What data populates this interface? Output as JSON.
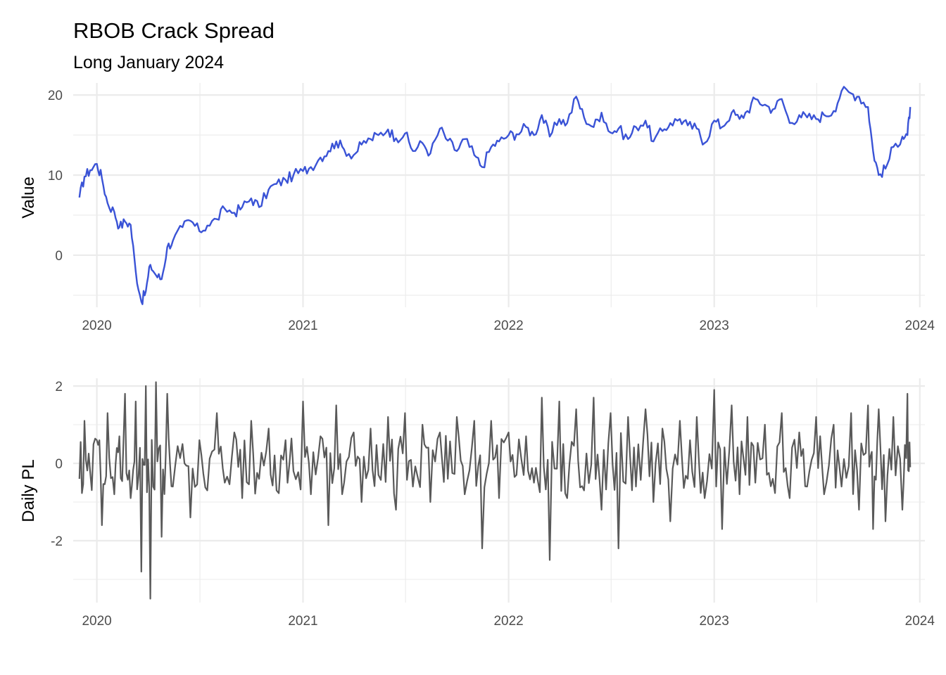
{
  "chart_data": [
    {
      "type": "line",
      "title": "RBOB Crack Spread",
      "subtitle": "Long January 2024",
      "xlabel": "",
      "ylabel": "Value",
      "x_ticks": [
        "2020",
        "2021",
        "2022",
        "2023",
        "2024"
      ],
      "y_ticks": [
        "0",
        "10",
        "20"
      ],
      "xlim": [
        "2019-11-20",
        "2024-01-10"
      ],
      "ylim": [
        -6.5,
        21.5
      ],
      "grid": true,
      "color": "#3a53d6",
      "series": [
        {
          "x": [
            "2019-12-01",
            "2019-12-10",
            "2019-12-20",
            "2020-01-01",
            "2020-01-10",
            "2020-01-20",
            "2020-02-01",
            "2020-02-10",
            "2020-02-20",
            "2020-03-01",
            "2020-03-10",
            "2020-03-20",
            "2020-03-28",
            "2020-04-05",
            "2020-04-15",
            "2020-04-25",
            "2020-05-05",
            "2020-05-15",
            "2020-06-01",
            "2020-06-15",
            "2020-07-01",
            "2020-07-15",
            "2020-08-01",
            "2020-08-15",
            "2020-09-01",
            "2020-09-15",
            "2020-10-01",
            "2020-10-15",
            "2020-11-01",
            "2020-11-15",
            "2020-12-01",
            "2020-12-15",
            "2021-01-01",
            "2021-01-15",
            "2021-02-01",
            "2021-02-15",
            "2021-03-01",
            "2021-03-15",
            "2021-04-01",
            "2021-04-15",
            "2021-05-01",
            "2021-05-15",
            "2021-06-01",
            "2021-06-15",
            "2021-07-01",
            "2021-07-15",
            "2021-08-01",
            "2021-08-15",
            "2021-09-01",
            "2021-09-15",
            "2021-10-01",
            "2021-10-15",
            "2021-11-01",
            "2021-11-15",
            "2021-12-01",
            "2021-12-15",
            "2022-01-01",
            "2022-01-15",
            "2022-02-01",
            "2022-02-15",
            "2022-03-01",
            "2022-03-15",
            "2022-04-01",
            "2022-04-15",
            "2022-05-01",
            "2022-05-15",
            "2022-06-01",
            "2022-06-15",
            "2022-07-01",
            "2022-07-15",
            "2022-08-01",
            "2022-08-15",
            "2022-09-01",
            "2022-09-15",
            "2022-10-01",
            "2022-10-15",
            "2022-11-01",
            "2022-11-15",
            "2022-12-01",
            "2022-12-15",
            "2023-01-01",
            "2023-01-15",
            "2023-02-01",
            "2023-02-15",
            "2023-03-01",
            "2023-03-15",
            "2023-04-01",
            "2023-04-15",
            "2023-05-01",
            "2023-05-15",
            "2023-06-01",
            "2023-06-15",
            "2023-07-01",
            "2023-07-15",
            "2023-08-01",
            "2023-08-15",
            "2023-09-01",
            "2023-09-15",
            "2023-10-01",
            "2023-10-10",
            "2023-10-20",
            "2023-11-01",
            "2023-11-15",
            "2023-12-01",
            "2023-12-10",
            "2023-12-15"
          ],
          "y": [
            7.2,
            9.8,
            10.6,
            11.4,
            9.6,
            6.5,
            5.4,
            3.5,
            4.2,
            3.8,
            -2.0,
            -5.8,
            -4.5,
            -1.2,
            -2.5,
            -3.0,
            1.0,
            1.8,
            3.5,
            4.3,
            3.0,
            3.7,
            4.5,
            5.8,
            5.3,
            6.0,
            7.1,
            6.0,
            8.2,
            8.9,
            9.4,
            10.0,
            10.5,
            11.0,
            12.2,
            13.0,
            14.2,
            13.2,
            12.5,
            13.8,
            14.5,
            15.0,
            15.7,
            14.6,
            15.2,
            13.0,
            14.0,
            12.7,
            15.8,
            14.3,
            13.0,
            14.5,
            12.5,
            11.0,
            13.5,
            14.2,
            15.0,
            15.1,
            16.0,
            15.0,
            17.5,
            14.8,
            17.0,
            16.5,
            19.8,
            17.2,
            16.0,
            17.8,
            15.3,
            15.8,
            14.5,
            16.0,
            16.8,
            14.2,
            15.5,
            16.5,
            17.0,
            16.2,
            15.8,
            14.0,
            16.8,
            16.0,
            17.8,
            17.0,
            18.0,
            19.5,
            18.8,
            18.2,
            19.5,
            16.5,
            17.5,
            17.2,
            17.0,
            17.5,
            18.0,
            20.5,
            20.2,
            19.8,
            18.5,
            13.0,
            10.0,
            10.8,
            13.5,
            14.8,
            15.0,
            18.5
          ]
        }
      ]
    },
    {
      "type": "line",
      "xlabel": "",
      "ylabel": "Daily PL",
      "x_ticks": [
        "2020",
        "2021",
        "2022",
        "2023",
        "2024"
      ],
      "y_ticks": [
        "-2",
        "0",
        "2"
      ],
      "xlim": [
        "2019-11-20",
        "2024-01-10"
      ],
      "ylim": [
        -3.6,
        2.2
      ],
      "grid": true,
      "color": "#595959",
      "series": [
        {
          "x": [
            "2019-12-01",
            "2019-12-10",
            "2019-12-20",
            "2020-01-01",
            "2020-01-10",
            "2020-01-20",
            "2020-02-01",
            "2020-02-10",
            "2020-02-20",
            "2020-03-01",
            "2020-03-10",
            "2020-03-20",
            "2020-03-28",
            "2020-04-05",
            "2020-04-15",
            "2020-04-25",
            "2020-05-05",
            "2020-05-15",
            "2020-06-01",
            "2020-06-15",
            "2020-07-01",
            "2020-07-15",
            "2020-08-01",
            "2020-08-15",
            "2020-09-01",
            "2020-09-15",
            "2020-10-01",
            "2020-10-15",
            "2020-11-01",
            "2020-11-15",
            "2020-12-01",
            "2020-12-15",
            "2021-01-01",
            "2021-01-15",
            "2021-02-01",
            "2021-02-15",
            "2021-03-01",
            "2021-03-15",
            "2021-04-01",
            "2021-04-15",
            "2021-05-01",
            "2021-05-15",
            "2021-06-01",
            "2021-06-15",
            "2021-07-01",
            "2021-07-15",
            "2021-08-01",
            "2021-08-15",
            "2021-09-01",
            "2021-09-15",
            "2021-10-01",
            "2021-10-15",
            "2021-11-01",
            "2021-11-15",
            "2021-12-01",
            "2021-12-15",
            "2022-01-01",
            "2022-01-15",
            "2022-02-01",
            "2022-02-15",
            "2022-03-01",
            "2022-03-15",
            "2022-04-01",
            "2022-04-15",
            "2022-05-01",
            "2022-05-15",
            "2022-06-01",
            "2022-06-15",
            "2022-07-01",
            "2022-07-15",
            "2022-08-01",
            "2022-08-15",
            "2022-09-01",
            "2022-09-15",
            "2022-10-01",
            "2022-10-15",
            "2022-11-01",
            "2022-11-15",
            "2022-12-01",
            "2022-12-15",
            "2023-01-01",
            "2023-01-15",
            "2023-02-01",
            "2023-02-15",
            "2023-03-01",
            "2023-03-15",
            "2023-04-01",
            "2023-04-15",
            "2023-05-01",
            "2023-05-15",
            "2023-06-01",
            "2023-06-15",
            "2023-07-01",
            "2023-07-15",
            "2023-08-01",
            "2023-08-15",
            "2023-09-01",
            "2023-09-15",
            "2023-10-01",
            "2023-10-10",
            "2023-10-20",
            "2023-11-01",
            "2023-11-15",
            "2023-12-01",
            "2023-12-10",
            "2023-12-15"
          ],
          "y": [
            -0.4,
            1.1,
            -0.2,
            0.6,
            -1.6,
            1.3,
            -0.8,
            0.7,
            1.8,
            -0.9,
            1.6,
            -2.8,
            2.0,
            -3.5,
            2.1,
            -1.9,
            1.8,
            -0.6,
            0.5,
            -1.4,
            0.6,
            -0.7,
            1.3,
            -0.5,
            0.8,
            -0.9,
            1.1,
            -0.4,
            0.9,
            -0.7,
            0.6,
            -0.2,
            1.6,
            -0.8,
            0.7,
            -1.6,
            1.5,
            -0.5,
            0.8,
            -1.0,
            0.9,
            -0.3,
            1.2,
            -1.2,
            1.3,
            -0.6,
            1.0,
            -1.0,
            0.8,
            -0.4,
            1.2,
            -0.8,
            1.1,
            -2.2,
            1.1,
            -0.9,
            0.8,
            -0.3,
            0.7,
            -0.5,
            1.7,
            -2.5,
            1.6,
            -0.9,
            1.4,
            -0.7,
            1.7,
            -1.2,
            1.3,
            -2.2,
            1.2,
            -0.6,
            1.4,
            -1.0,
            0.9,
            -1.5,
            1.1,
            -0.4,
            1.2,
            -0.9,
            1.9,
            -1.7,
            1.5,
            -0.8,
            1.2,
            -0.5,
            1.0,
            -0.4,
            1.3,
            -0.9,
            0.8,
            -0.6,
            1.2,
            -0.8,
            1.0,
            -0.6,
            1.3,
            -1.2,
            1.5,
            -1.7,
            1.4,
            -1.5,
            1.2,
            -1.2,
            1.8,
            -0.1
          ]
        }
      ]
    }
  ]
}
